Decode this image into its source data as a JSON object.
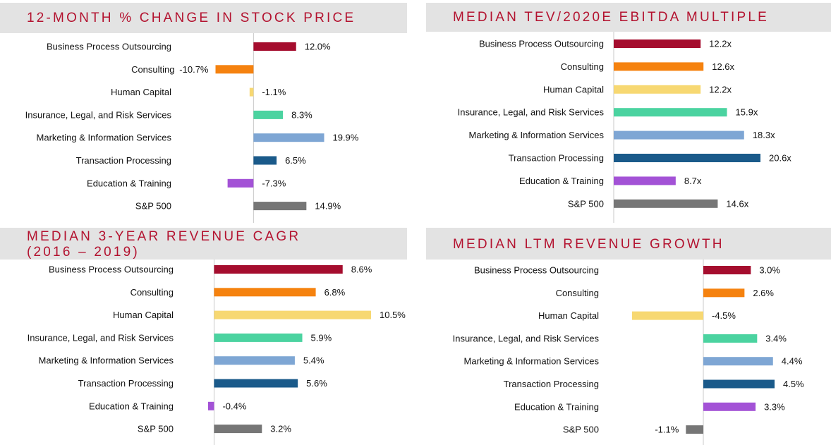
{
  "colors": [
    "#a50d2e",
    "#f5820f",
    "#f7d872",
    "#4bd3a0",
    "#7ea6d4",
    "#1a5a8a",
    "#a352d6",
    "#767676"
  ],
  "title_color": "#b3122f",
  "chart_data": [
    {
      "type": "bar",
      "orientation": "horizontal",
      "title": "12-MONTH % CHANGE IN STOCK PRICE",
      "categories": [
        "Business Process Outsourcing",
        "Consulting",
        "Human Capital",
        "Insurance, Legal, and Risk Services",
        "Marketing & Information Services",
        "Transaction Processing",
        "Education & Training",
        "S&P 500"
      ],
      "values": [
        12.0,
        -10.7,
        -1.1,
        8.3,
        19.9,
        6.5,
        -7.3,
        14.9
      ],
      "labels": [
        "12.0%",
        "-10.7%",
        "-1.1%",
        "8.3%",
        "19.9%",
        "6.5%",
        "-7.3%",
        "14.9%"
      ],
      "xlim": [
        -11,
        20
      ]
    },
    {
      "type": "bar",
      "orientation": "horizontal",
      "title": "MEDIAN TEV/2020E EBITDA MULTIPLE",
      "categories": [
        "Business Process Outsourcing",
        "Consulting",
        "Human Capital",
        "Insurance, Legal, and Risk Services",
        "Marketing & Information Services",
        "Transaction Processing",
        "Education & Training",
        "S&P 500"
      ],
      "values": [
        12.2,
        12.6,
        12.2,
        15.9,
        18.3,
        20.6,
        8.7,
        14.6
      ],
      "labels": [
        "12.2x",
        "12.6x",
        "12.2x",
        "15.9x",
        "18.3x",
        "20.6x",
        "8.7x",
        "14.6x"
      ],
      "xlim": [
        0,
        20.6
      ]
    },
    {
      "type": "bar",
      "orientation": "horizontal",
      "title": "MEDIAN 3-YEAR REVENUE CAGR\n(2016 – 2019)",
      "categories": [
        "Business Process Outsourcing",
        "Consulting",
        "Human Capital",
        "Insurance, Legal, and Risk Services",
        "Marketing & Information Services",
        "Transaction Processing",
        "Education & Training",
        "S&P 500"
      ],
      "values": [
        8.6,
        6.8,
        10.5,
        5.9,
        5.4,
        5.6,
        -0.4,
        3.2
      ],
      "labels": [
        "8.6%",
        "6.8%",
        "10.5%",
        "5.9%",
        "5.4%",
        "5.6%",
        "-0.4%",
        "3.2%"
      ],
      "xlim": [
        -0.4,
        10.5
      ]
    },
    {
      "type": "bar",
      "orientation": "horizontal",
      "title": "MEDIAN LTM REVENUE GROWTH",
      "categories": [
        "Business Process Outsourcing",
        "Consulting",
        "Human Capital",
        "Insurance, Legal, and Risk Services",
        "Marketing & Information Services",
        "Transaction Processing",
        "Education & Training",
        "S&P 500"
      ],
      "values": [
        3.0,
        2.6,
        -4.5,
        3.4,
        4.4,
        4.5,
        3.3,
        -1.1
      ],
      "labels": [
        "3.0%",
        "2.6%",
        "-4.5%",
        "3.4%",
        "4.4%",
        "4.5%",
        "3.3%",
        "-1.1%"
      ],
      "xlim": [
        -4.5,
        4.5
      ]
    }
  ]
}
